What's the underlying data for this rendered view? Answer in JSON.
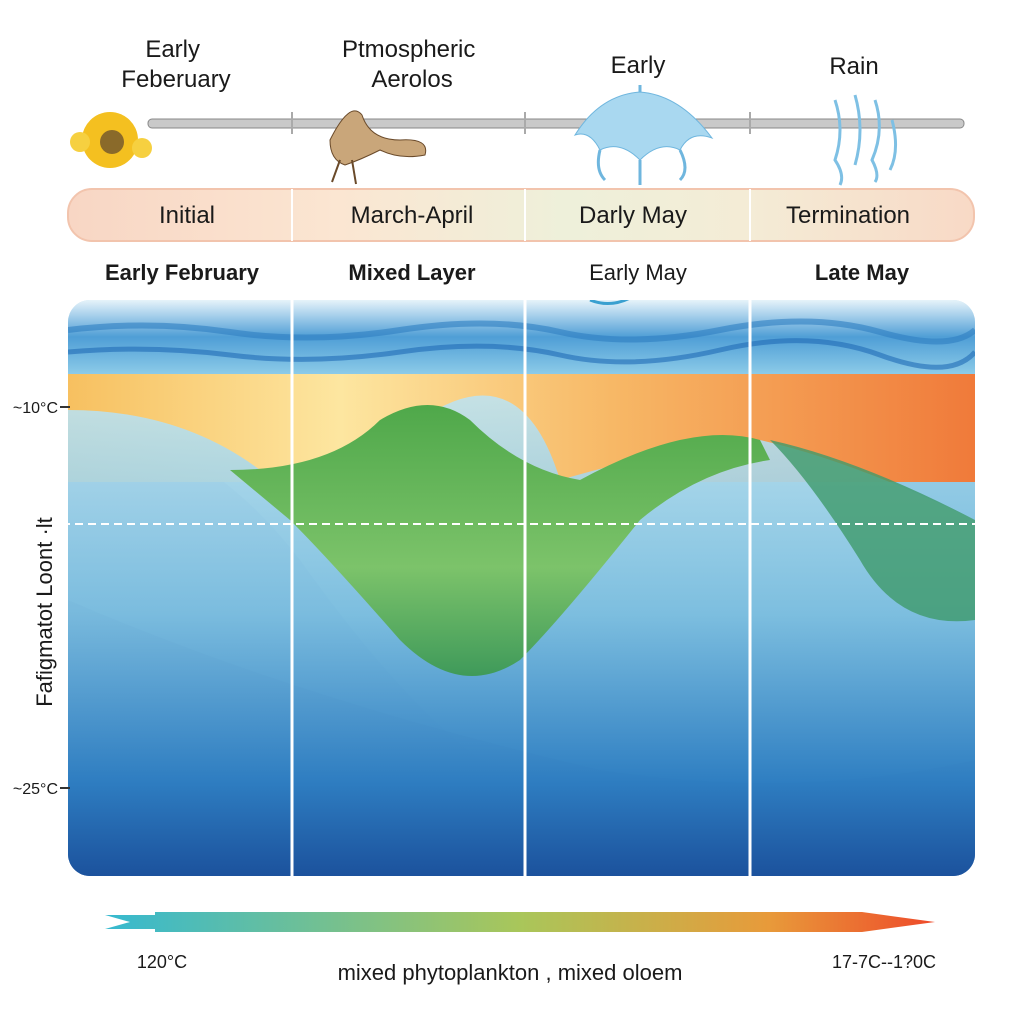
{
  "top_labels": [
    {
      "lines": [
        "Early",
        "Feberuary"
      ]
    },
    {
      "lines": [
        "Ptmospheric",
        "Aerolos"
      ]
    },
    {
      "lines": [
        "Early"
      ]
    },
    {
      "lines": [
        "Rain"
      ]
    }
  ],
  "phases": [
    "Initial",
    "March-April",
    "Darly May",
    "Termination"
  ],
  "columns": [
    "Early February",
    "Mixed Layer",
    "Early May",
    "Late May"
  ],
  "axis": {
    "title": "Fafigmatot Loont  ·lt",
    "labels": [
      "~10°C",
      "~25°C"
    ]
  },
  "legend": {
    "left": "120°C",
    "caption": "mixed phytoplankton , mixed oloem",
    "right": "17-7C--1?0C"
  }
}
